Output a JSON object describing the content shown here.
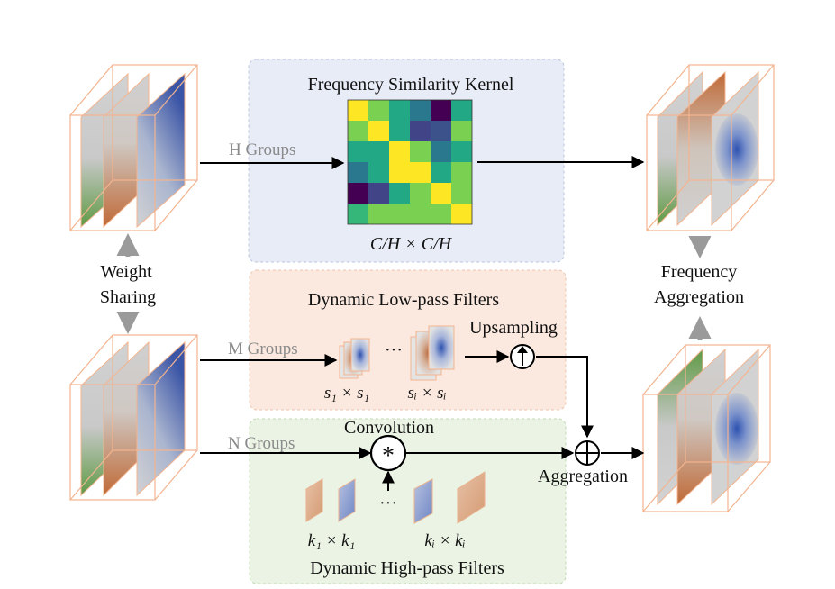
{
  "kernel": {
    "title": "Frequency Similarity  Kernel",
    "size_label": "C/H × C/H",
    "colors": [
      [
        "#fde725",
        "#7ad151",
        "#22a884",
        "#2a788e",
        "#440154",
        "#22a884"
      ],
      [
        "#7ad151",
        "#fde725",
        "#22a884",
        "#414487",
        "#3b528b",
        "#7ad151"
      ],
      [
        "#22a884",
        "#22a884",
        "#fde725",
        "#7ad151",
        "#2a788e",
        "#22a884"
      ],
      [
        "#2a788e",
        "#22a884",
        "#fde725",
        "#fde725",
        "#22a884",
        "#7ad151"
      ],
      [
        "#440154",
        "#414487",
        "#22a884",
        "#7ad151",
        "#fde725",
        "#7ad151"
      ],
      [
        "#35b779",
        "#7ad151",
        "#7ad151",
        "#7ad151",
        "#7ad151",
        "#fde725"
      ]
    ]
  },
  "labels": {
    "h_groups": "H Groups",
    "m_groups": "M Groups",
    "n_groups": "N Groups",
    "weight_sharing_1": "Weight",
    "weight_sharing_2": "Sharing",
    "freq_agg_1": "Frequency",
    "freq_agg_2": "Aggregation",
    "lowpass_title": "Dynamic  Low-pass Filters",
    "upsampling": "Upsampling",
    "convolution": "Convolution",
    "aggregation": "Aggregation",
    "highpass_title": "Dynamic  High-pass Filters",
    "s1": "s₁ × s₁",
    "si": "sᵢ × sᵢ",
    "k1": "k₁ × k₁",
    "ki": "kᵢ × kᵢ",
    "ellipsis": "···",
    "conv_symbol": "*"
  },
  "colors": {
    "blue_panel": "#e8ecf7",
    "orange_panel": "#fbe9df",
    "green_panel": "#eaf3e4",
    "box_outline": "#f3b48f",
    "arrow": "#000000",
    "gray_arrow": "#9a9a9a"
  }
}
